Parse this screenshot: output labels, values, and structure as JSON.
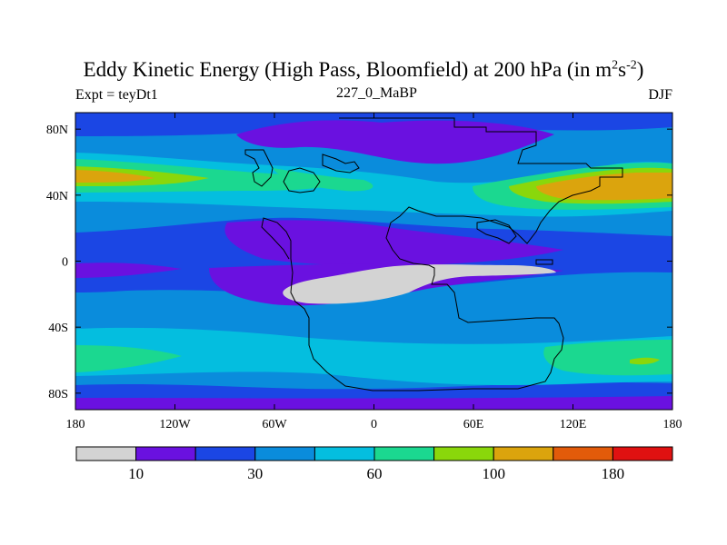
{
  "chart_data": {
    "type": "heatmap",
    "title": "Eddy Kinetic Energy (High Pass, Bloomfield) at 200 hPa (in m",
    "title_units_sup1": "2",
    "title_units_mid": "s",
    "title_units_sup2": "-2",
    "title_units_end": ")",
    "left_label": "Expt = teyDt1",
    "center_label": "227_0_MaBP",
    "right_label": "DJF",
    "x_range": [
      -180,
      180
    ],
    "y_range": [
      -90,
      90
    ],
    "x_ticks": [
      {
        "value": -180,
        "label": "180"
      },
      {
        "value": -120,
        "label": "120W"
      },
      {
        "value": -60,
        "label": "60W"
      },
      {
        "value": 0,
        "label": "0"
      },
      {
        "value": 60,
        "label": "60E"
      },
      {
        "value": 120,
        "label": "120E"
      },
      {
        "value": 180,
        "label": "180"
      }
    ],
    "y_ticks": [
      {
        "value": 80,
        "label": "80N"
      },
      {
        "value": 40,
        "label": "40N"
      },
      {
        "value": 0,
        "label": "0"
      },
      {
        "value": -40,
        "label": "40S"
      },
      {
        "value": -80,
        "label": "80S"
      }
    ],
    "colorbar": {
      "levels": [
        0,
        10,
        20,
        30,
        45,
        60,
        80,
        100,
        140,
        180,
        250
      ],
      "colors": [
        "#d3d3d3",
        "#6a11e0",
        "#1b46e4",
        "#0a8cdc",
        "#04bedf",
        "#1bd890",
        "#8ad70b",
        "#dba40d",
        "#e25b0a",
        "#e01111"
      ],
      "tick_labels": [
        {
          "index": 1,
          "label": "10"
        },
        {
          "index": 3,
          "label": "30"
        },
        {
          "index": 5,
          "label": "60"
        },
        {
          "index": 7,
          "label": "100"
        },
        {
          "index": 9,
          "label": "180"
        }
      ]
    },
    "field_description_levels": {
      "background_band": 30,
      "storm_track_peak_north": 100,
      "tropical_min": 5
    }
  }
}
